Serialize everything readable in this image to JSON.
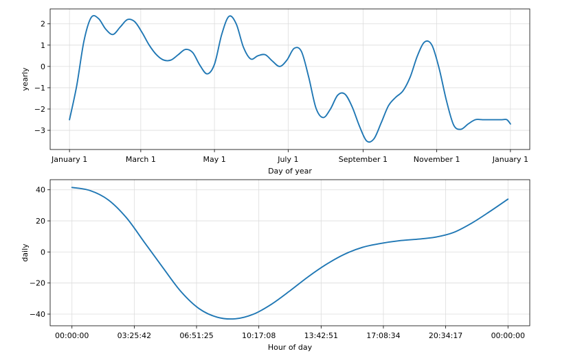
{
  "chart_data": [
    {
      "type": "line",
      "title": "",
      "xlabel": "Day of year",
      "ylabel": "yearly",
      "x_tick_labels": [
        "January 1",
        "March 1",
        "May 1",
        "July 1",
        "September 1",
        "November 1",
        "January 1"
      ],
      "x_tick_days": [
        0,
        59,
        120,
        181,
        243,
        304,
        365
      ],
      "y_ticks": [
        -3,
        -2,
        -1,
        0,
        1,
        2
      ],
      "y_tick_labels": [
        "−3",
        "−2",
        "−1",
        "0",
        "1",
        "2"
      ],
      "xlim": [
        -16,
        381
      ],
      "ylim": [
        -3.9,
        2.7
      ],
      "grid": true,
      "series": [
        {
          "color": "#1f77b4",
          "x": [
            0,
            6,
            12,
            18,
            24,
            30,
            36,
            42,
            48,
            54,
            60,
            66,
            72,
            78,
            84,
            90,
            96,
            102,
            108,
            114,
            120,
            126,
            132,
            138,
            144,
            150,
            156,
            162,
            168,
            174,
            180,
            186,
            192,
            198,
            204,
            210,
            216,
            222,
            228,
            234,
            240,
            246,
            252,
            258,
            264,
            270,
            276,
            282,
            288,
            294,
            300,
            306,
            312,
            318,
            324,
            330,
            336,
            342,
            348,
            354,
            358,
            362,
            365
          ],
          "y": [
            -2.5,
            -0.9,
            1.2,
            2.3,
            2.25,
            1.75,
            1.5,
            1.85,
            2.2,
            2.1,
            1.6,
            1.0,
            0.55,
            0.3,
            0.3,
            0.55,
            0.8,
            0.65,
            0.05,
            -0.35,
            0.1,
            1.5,
            2.35,
            2.0,
            0.9,
            0.35,
            0.5,
            0.55,
            0.25,
            0.0,
            0.3,
            0.85,
            0.7,
            -0.5,
            -1.95,
            -2.4,
            -2.0,
            -1.35,
            -1.3,
            -1.9,
            -2.8,
            -3.5,
            -3.4,
            -2.65,
            -1.85,
            -1.45,
            -1.15,
            -0.5,
            0.5,
            1.15,
            1.0,
            -0.1,
            -1.6,
            -2.75,
            -2.95,
            -2.7,
            -2.5,
            -2.5,
            -2.5,
            -2.5,
            -2.5,
            -2.5,
            -2.7
          ]
        }
      ]
    },
    {
      "type": "line",
      "title": "",
      "xlabel": "Hour of day",
      "ylabel": "daily",
      "x_tick_labels": [
        "00:00:00",
        "03:25:42",
        "06:51:25",
        "10:17:08",
        "13:42:51",
        "17:08:34",
        "20:34:17",
        "00:00:00"
      ],
      "x_tick_hours": [
        0,
        3.4286,
        6.8571,
        10.2857,
        13.7143,
        17.1429,
        20.5714,
        24
      ],
      "y_ticks": [
        -40,
        -20,
        0,
        20,
        40
      ],
      "y_tick_labels": [
        "−40",
        "−20",
        "0",
        "20",
        "40"
      ],
      "xlim": [
        -1.2,
        25.2
      ],
      "ylim": [
        -47.5,
        46.5
      ],
      "grid": true,
      "series": [
        {
          "color": "#1f77b4",
          "x": [
            0,
            1,
            2,
            3,
            4,
            5,
            6,
            7,
            8,
            9,
            10,
            11,
            12,
            13,
            14,
            15,
            16,
            17,
            18,
            19,
            20,
            21,
            22,
            23,
            24
          ],
          "y": [
            41.5,
            39.5,
            33.5,
            22.0,
            6.0,
            -10.0,
            -25.5,
            -36.5,
            -42.0,
            -43.0,
            -40.0,
            -33.5,
            -25.0,
            -16.0,
            -8.0,
            -1.5,
            3.0,
            5.5,
            7.2,
            8.2,
            9.5,
            12.5,
            18.5,
            26.0,
            34.0
          ]
        }
      ]
    }
  ]
}
